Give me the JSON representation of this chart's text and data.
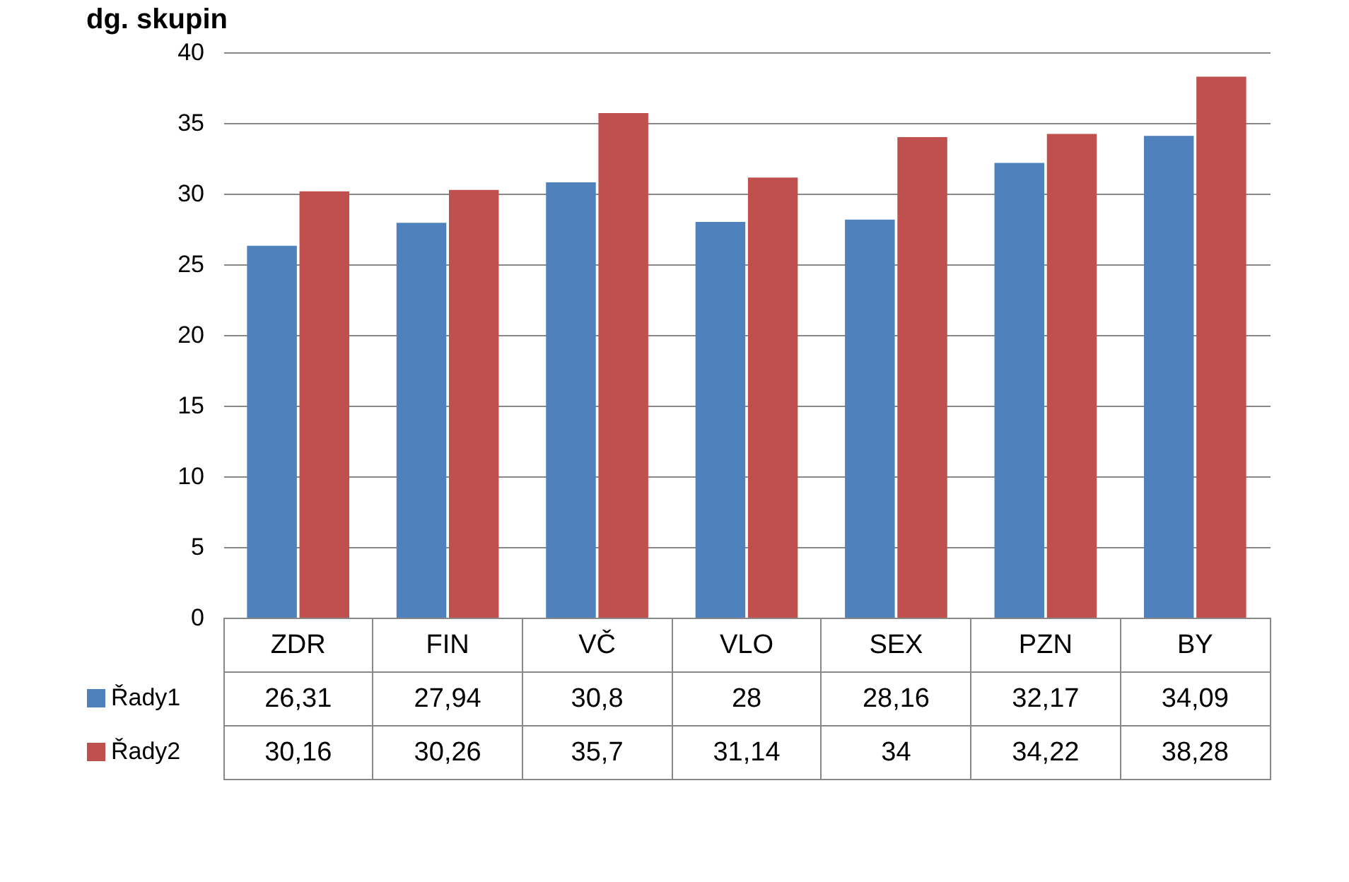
{
  "chart_data": {
    "type": "bar",
    "title": "dg. skupin",
    "categories": [
      "ZDR",
      "FIN",
      "VČ",
      "VLO",
      "SEX",
      "PZN",
      "BY"
    ],
    "series": [
      {
        "name": "Řady1",
        "color": "#4f81bd",
        "values": [
          26.31,
          27.94,
          30.8,
          28,
          28.16,
          32.17,
          34.09
        ],
        "value_labels": [
          "26,31",
          "27,94",
          "30,8",
          "28",
          "28,16",
          "32,17",
          "34,09"
        ]
      },
      {
        "name": "Řady2",
        "color": "#c0504d",
        "values": [
          30.16,
          30.26,
          35.7,
          31.14,
          34,
          34.22,
          38.28
        ],
        "value_labels": [
          "30,16",
          "30,26",
          "35,7",
          "31,14",
          "34",
          "34,22",
          "38,28"
        ]
      }
    ],
    "ylim": [
      0,
      40
    ],
    "yticks": [
      0,
      5,
      10,
      15,
      20,
      25,
      30,
      35,
      40
    ],
    "grid": true,
    "legend": "bottom left"
  }
}
